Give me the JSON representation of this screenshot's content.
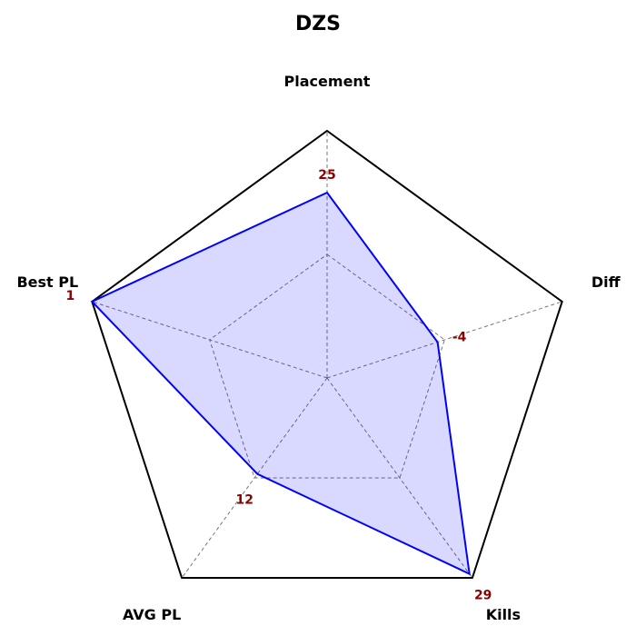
{
  "chart_data": {
    "type": "radar",
    "title": "DZS",
    "axes": [
      "Placement",
      "Diff",
      "Kills",
      "AVG PL",
      "Best PL"
    ],
    "series": [
      {
        "normalized": [
          0.75,
          0.47,
          0.98,
          0.48,
          1.0
        ],
        "value_labels": [
          "25",
          "-4",
          "29",
          "12",
          "1"
        ]
      }
    ],
    "range": [
      0,
      1
    ],
    "gridlines": [
      0.5,
      1.0
    ],
    "grid": true,
    "colors": {
      "series_line": "#0000ff",
      "series_fill": "rgba(0,0,255,0.15)",
      "outer_frame": "#000000",
      "grid": "#777777",
      "value_label": "#8b0000"
    }
  }
}
